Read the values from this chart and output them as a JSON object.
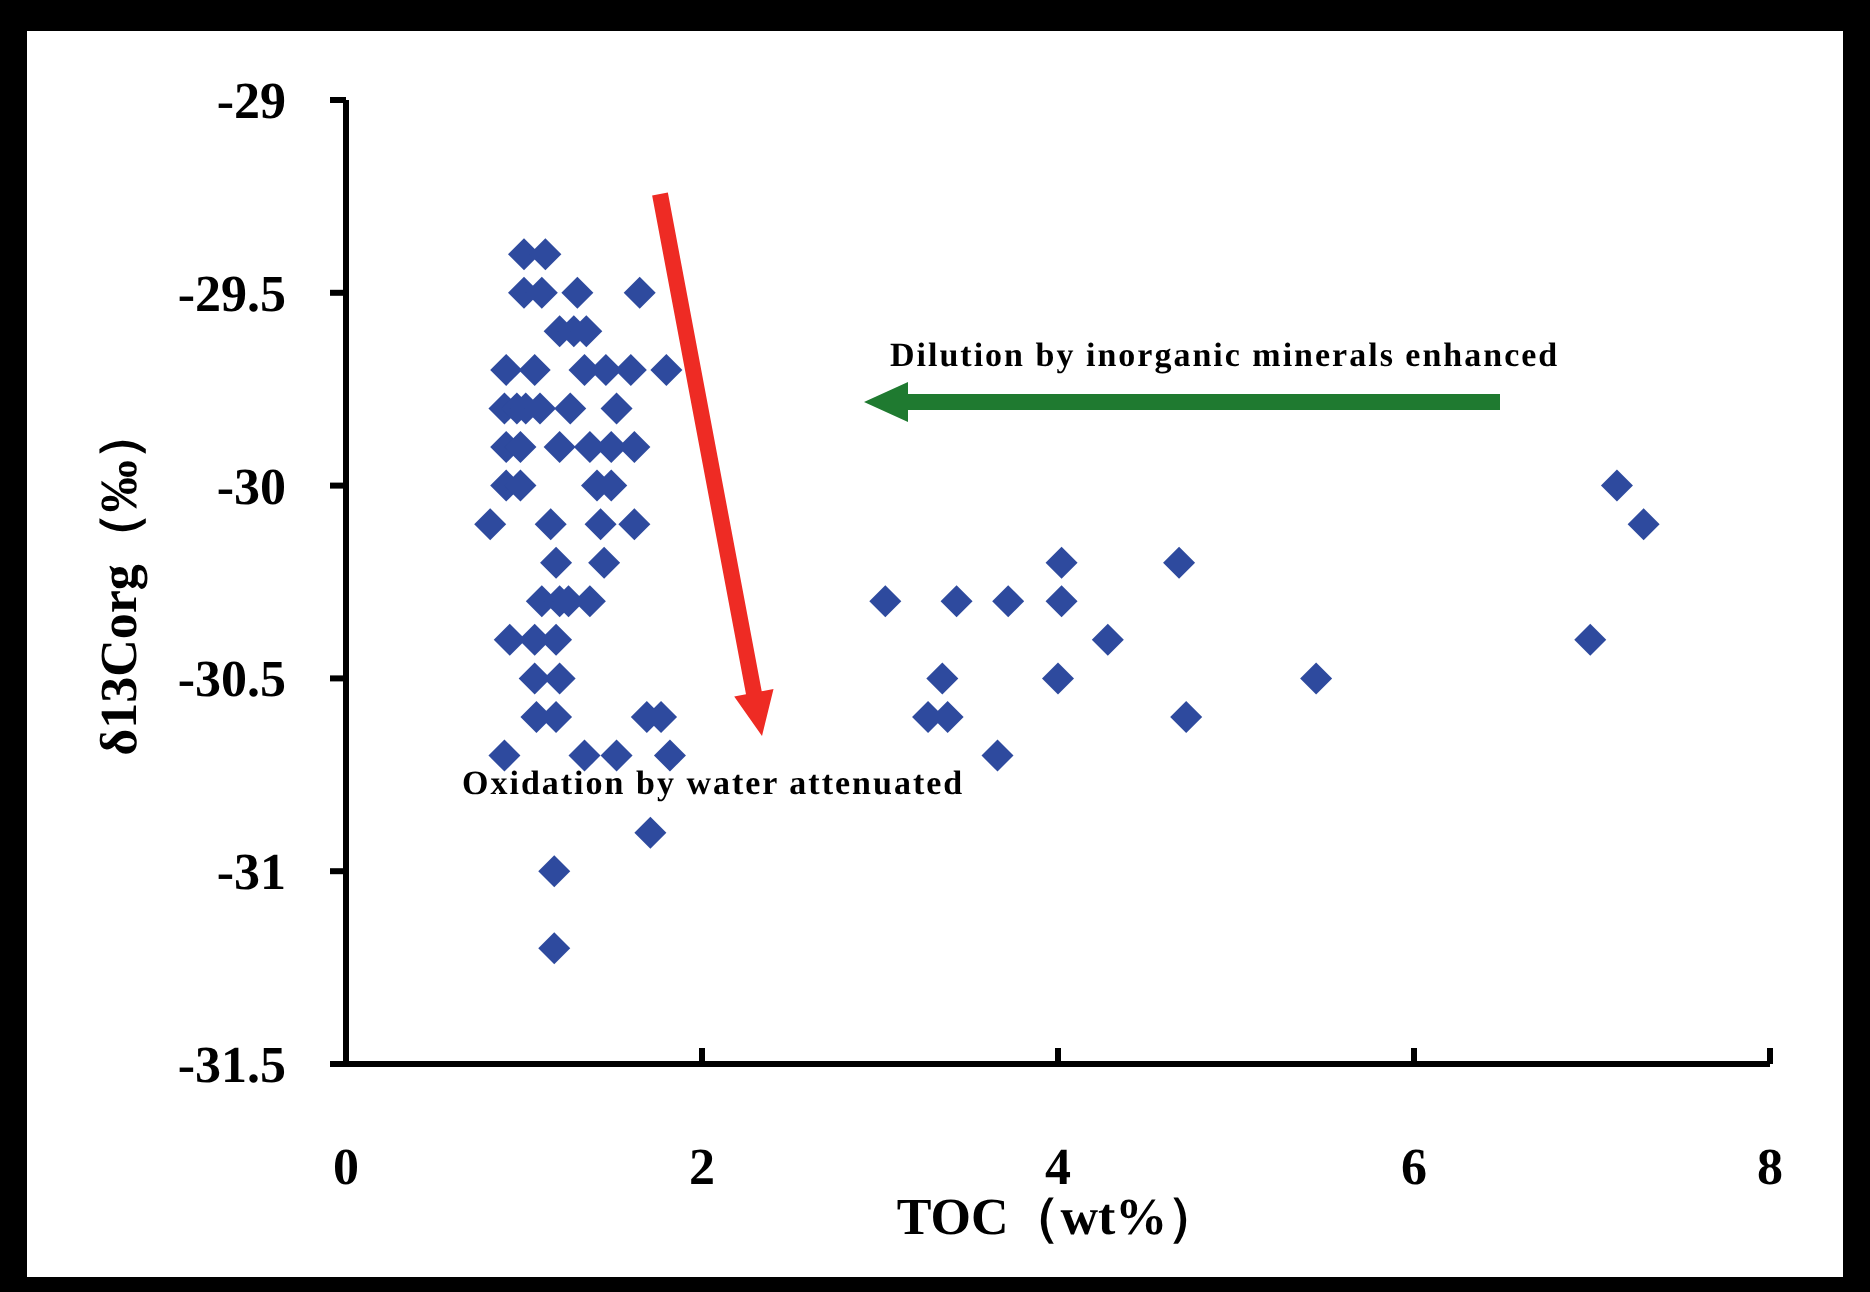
{
  "chart_data": {
    "type": "scatter",
    "xlabel": "TOC（wt%）",
    "ylabel": "δ13Corg（‰）",
    "xlim": [
      0,
      8
    ],
    "xticks": [
      0,
      2,
      4,
      6,
      8
    ],
    "ylim": [
      -31.5,
      -29
    ],
    "yticks": [
      -31.5,
      -31,
      -30.5,
      -30,
      -29.5,
      -29
    ],
    "marker": "diamond",
    "grid": false,
    "annotations": [
      "Dilution by inorganic minerals enhanced",
      "Oxidation by water attenuated"
    ],
    "series": [
      {
        "color": "#2e4a9e",
        "x": [
          1.0,
          1.12,
          1.0,
          1.1,
          1.3,
          1.65,
          1.2,
          1.28,
          1.35,
          0.9,
          1.06,
          1.34,
          1.46,
          1.6,
          1.8,
          0.89,
          0.96,
          1.01,
          1.09,
          1.26,
          1.52,
          0.9,
          0.98,
          1.2,
          1.37,
          1.49,
          1.62,
          0.9,
          0.98,
          1.41,
          1.49,
          0.81,
          1.15,
          1.43,
          1.62,
          1.18,
          1.45,
          1.1,
          1.2,
          1.25,
          1.37,
          0.92,
          1.06,
          1.18,
          1.06,
          1.2,
          1.07,
          1.18,
          1.69,
          1.77,
          0.89,
          1.34,
          1.52,
          1.82,
          1.71,
          1.17,
          1.17,
          3.03,
          3.43,
          3.72,
          4.02,
          4.02,
          4.68,
          4.28,
          3.35,
          4.0,
          5.45,
          3.27,
          3.38,
          4.72,
          3.66,
          7.14,
          7.29,
          6.99
        ],
        "values": [
          -29.4,
          -29.4,
          -29.5,
          -29.5,
          -29.5,
          -29.5,
          -29.6,
          -29.6,
          -29.6,
          -29.7,
          -29.7,
          -29.7,
          -29.7,
          -29.7,
          -29.7,
          -29.8,
          -29.8,
          -29.8,
          -29.8,
          -29.8,
          -29.8,
          -29.9,
          -29.9,
          -29.9,
          -29.9,
          -29.9,
          -29.9,
          -30.0,
          -30.0,
          -30.0,
          -30.0,
          -30.1,
          -30.1,
          -30.1,
          -30.1,
          -30.2,
          -30.2,
          -30.3,
          -30.3,
          -30.3,
          -30.3,
          -30.4,
          -30.4,
          -30.4,
          -30.5,
          -30.5,
          -30.6,
          -30.6,
          -30.6,
          -30.6,
          -30.7,
          -30.7,
          -30.7,
          -30.7,
          -30.9,
          -31.0,
          -31.2,
          -30.3,
          -30.3,
          -30.3,
          -30.3,
          -30.2,
          -30.2,
          -30.4,
          -30.5,
          -30.5,
          -30.5,
          -30.6,
          -30.6,
          -30.6,
          -30.7,
          -30.0,
          -30.1,
          -30.4
        ]
      }
    ]
  }
}
